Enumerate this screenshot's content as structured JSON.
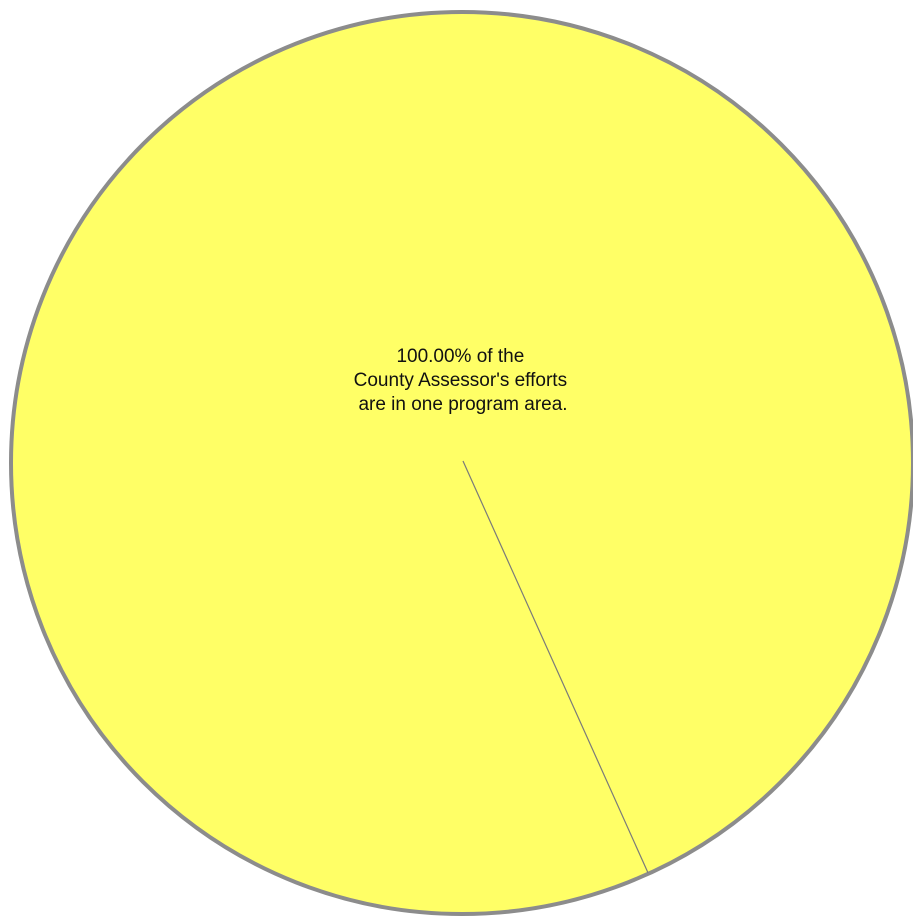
{
  "chart_data": {
    "type": "pie",
    "title": "",
    "slices": [
      {
        "label": "",
        "value": 100.0,
        "color": "#FFFF66"
      }
    ],
    "outline_color": "#8C8C8C",
    "annotation": {
      "lines": [
        "100.00% of the",
        "County Assessor's efforts",
        "are in one program area."
      ]
    }
  }
}
